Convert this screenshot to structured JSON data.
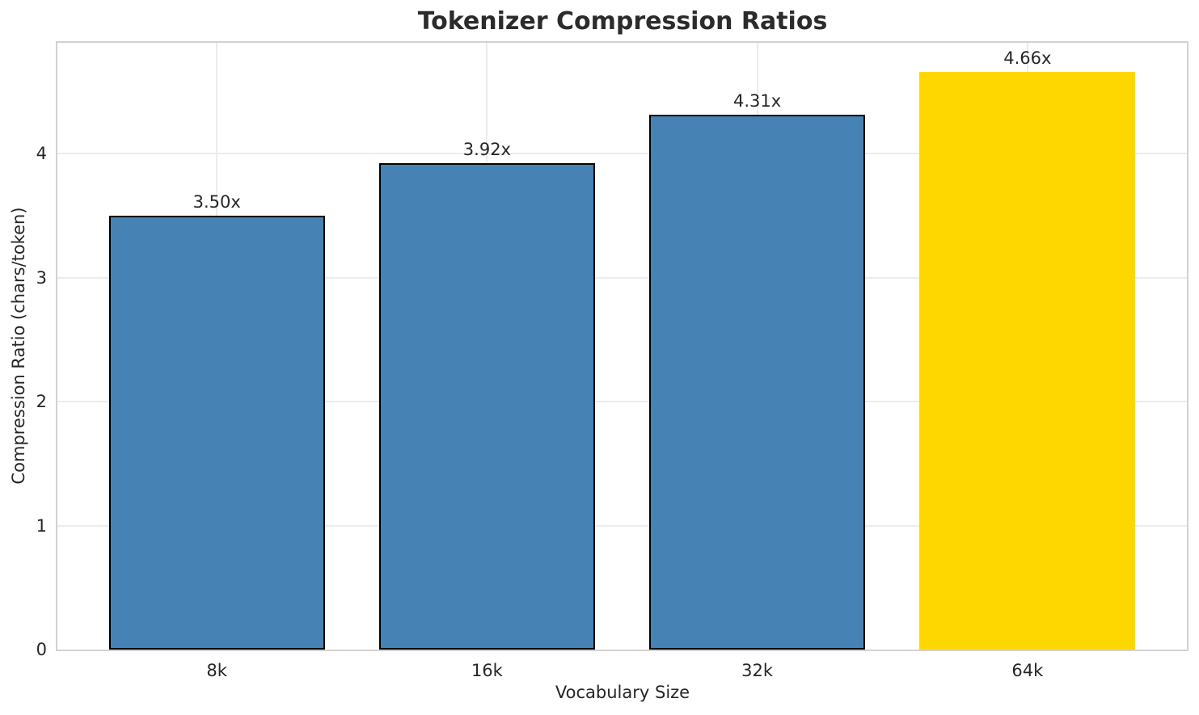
{
  "chart_data": {
    "type": "bar",
    "title": "Tokenizer Compression Ratios",
    "xlabel": "Vocabulary Size",
    "ylabel": "Compression Ratio (chars/token)",
    "categories": [
      "8k",
      "16k",
      "32k",
      "64k"
    ],
    "values": [
      3.5,
      3.92,
      4.31,
      4.66
    ],
    "bar_labels": [
      "3.50x",
      "3.92x",
      "4.31x",
      "4.66x"
    ],
    "ytick_values": [
      0,
      1,
      2,
      3,
      4
    ],
    "ytick_labels": [
      "0",
      "1",
      "2",
      "3",
      "4"
    ],
    "ylim": [
      0,
      4.893
    ],
    "grid": true,
    "legend_position": "none",
    "bar_colors": [
      "#4682b4",
      "#4682b4",
      "#4682b4",
      "#ffd700"
    ],
    "bar_edge_colors": [
      "#000000",
      "#000000",
      "#000000",
      "none"
    ]
  },
  "colors": {
    "background": "#ffffff",
    "grid": "#ececec",
    "spine": "#d2d2d2",
    "text": "#262626",
    "title": "#2b2b2b"
  }
}
